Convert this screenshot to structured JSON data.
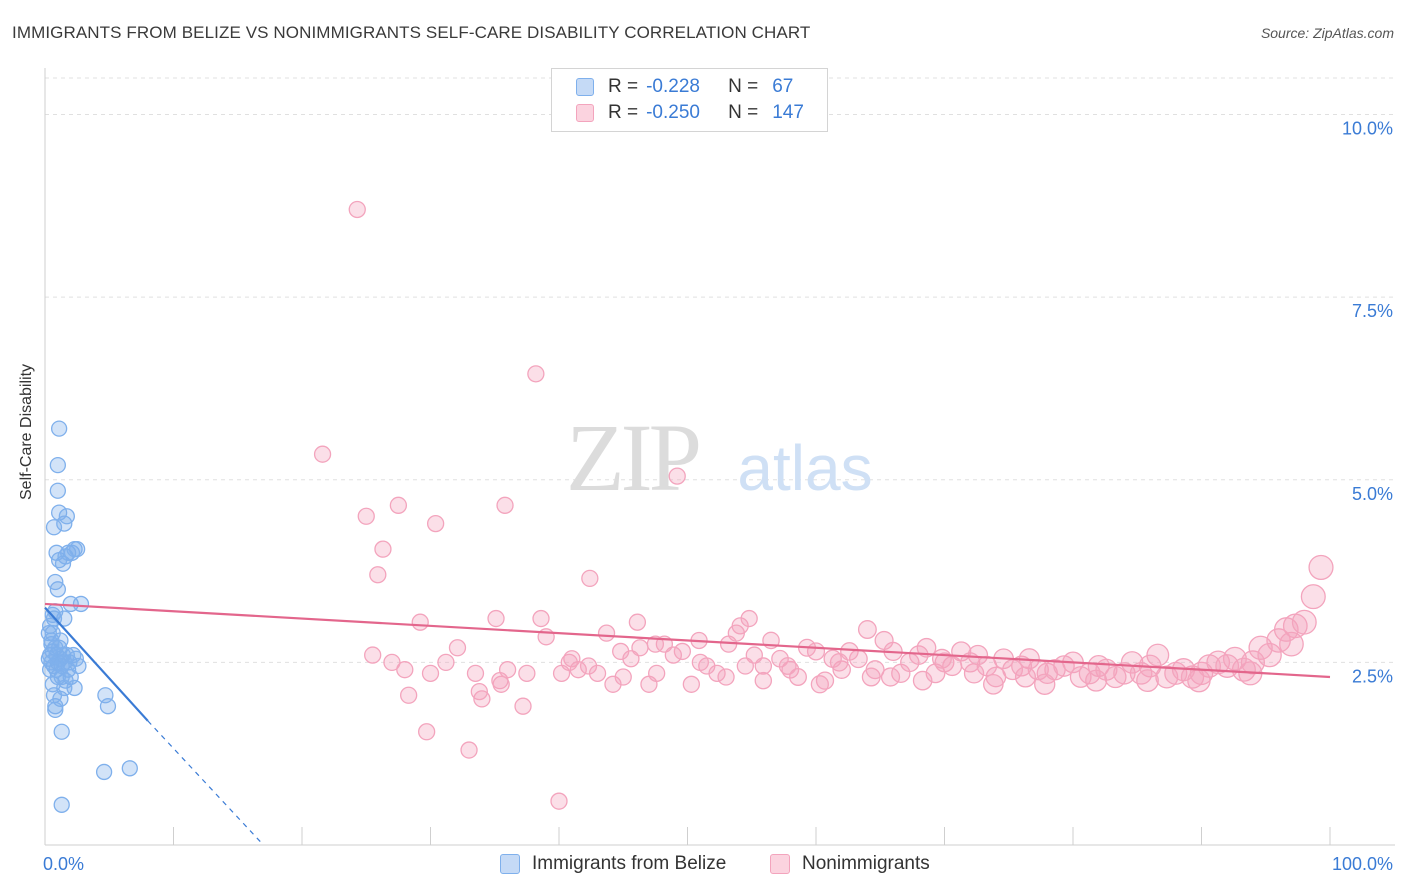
{
  "chart_data": {
    "type": "scatter",
    "title": "IMMIGRANTS FROM BELIZE VS NONIMMIGRANTS SELF-CARE DISABILITY CORRELATION CHART",
    "source": "Source: ZipAtlas.com",
    "ylabel": "Self-Care Disability",
    "xlabel": "",
    "xlim": [
      0,
      100
    ],
    "ylim": [
      0,
      10.5
    ],
    "x_tick_labels": [
      "0.0%",
      "100.0%"
    ],
    "y_ticks": [
      2.5,
      5.0,
      7.5,
      10.0
    ],
    "y_tick_labels": [
      "2.5%",
      "5.0%",
      "7.5%",
      "10.0%"
    ],
    "watermark": {
      "zip": "ZIP",
      "atlas": "atlas"
    },
    "legend": {
      "rows": [
        {
          "r_label": "R =",
          "r_value": "-0.228",
          "n_label": "N =",
          "n_value": "67"
        },
        {
          "r_label": "R =",
          "r_value": "-0.250",
          "n_label": "N =",
          "n_value": "147"
        }
      ]
    },
    "series": [
      {
        "name": "Immigrants from Belize",
        "color": "#7fb0ec",
        "line_color": "#3a7bd5",
        "trend": {
          "x": [
            0,
            8
          ],
          "y": [
            3.25,
            1.7
          ],
          "dashed_to": [
            17,
            0.0
          ]
        },
        "points": [
          [
            0.3,
            2.55
          ],
          [
            0.4,
            2.6
          ],
          [
            0.5,
            2.5
          ],
          [
            0.6,
            2.65
          ],
          [
            0.7,
            2.45
          ],
          [
            0.8,
            2.7
          ],
          [
            0.5,
            2.8
          ],
          [
            0.6,
            2.9
          ],
          [
            0.4,
            3.0
          ],
          [
            0.7,
            3.1
          ],
          [
            0.9,
            2.6
          ],
          [
            1.0,
            2.5
          ],
          [
            1.1,
            2.7
          ],
          [
            1.2,
            2.55
          ],
          [
            1.3,
            2.45
          ],
          [
            0.8,
            3.2
          ],
          [
            1.4,
            2.6
          ],
          [
            1.5,
            2.5
          ],
          [
            0.9,
            2.4
          ],
          [
            1.0,
            2.3
          ],
          [
            0.6,
            2.2
          ],
          [
            0.7,
            2.05
          ],
          [
            0.8,
            1.9
          ],
          [
            1.2,
            2.0
          ],
          [
            1.6,
            2.25
          ],
          [
            1.8,
            2.4
          ],
          [
            1.2,
            2.8
          ],
          [
            1.5,
            3.1
          ],
          [
            1.0,
            3.5
          ],
          [
            0.8,
            3.6
          ],
          [
            1.1,
            3.9
          ],
          [
            0.9,
            4.0
          ],
          [
            1.4,
            3.85
          ],
          [
            1.6,
            3.95
          ],
          [
            1.8,
            4.0
          ],
          [
            2.1,
            4.0
          ],
          [
            2.3,
            4.05
          ],
          [
            2.5,
            4.05
          ],
          [
            0.7,
            4.35
          ],
          [
            1.5,
            4.4
          ],
          [
            1.1,
            4.55
          ],
          [
            1.7,
            4.5
          ],
          [
            1.0,
            4.85
          ],
          [
            1.0,
            5.2
          ],
          [
            1.1,
            5.7
          ],
          [
            2.0,
            3.3
          ],
          [
            2.8,
            3.3
          ],
          [
            2.2,
            2.6
          ],
          [
            2.4,
            2.55
          ],
          [
            2.6,
            2.45
          ],
          [
            2.0,
            2.3
          ],
          [
            2.3,
            2.15
          ],
          [
            1.9,
            2.5
          ],
          [
            1.3,
            2.3
          ],
          [
            1.5,
            2.15
          ],
          [
            4.7,
            2.05
          ],
          [
            4.9,
            1.9
          ],
          [
            0.8,
            1.85
          ],
          [
            1.3,
            1.55
          ],
          [
            4.6,
            1.0
          ],
          [
            6.6,
            1.05
          ],
          [
            1.3,
            0.55
          ],
          [
            0.5,
            2.75
          ],
          [
            0.3,
            2.9
          ],
          [
            0.6,
            3.15
          ],
          [
            0.4,
            2.4
          ],
          [
            1.7,
            2.6
          ]
        ]
      },
      {
        "name": "Nonimmigrants",
        "color": "#f3a4bd",
        "line_color": "#e3668c",
        "trend": {
          "x": [
            0,
            100
          ],
          "y": [
            3.3,
            2.3
          ]
        },
        "points": [
          [
            24.3,
            8.7
          ],
          [
            38.2,
            6.45
          ],
          [
            21.6,
            5.35
          ],
          [
            49.2,
            5.05
          ],
          [
            25.0,
            4.5
          ],
          [
            27.5,
            4.65
          ],
          [
            30.4,
            4.4
          ],
          [
            35.8,
            4.65
          ],
          [
            25.9,
            3.7
          ],
          [
            26.3,
            4.05
          ],
          [
            42.4,
            3.65
          ],
          [
            29.2,
            3.05
          ],
          [
            35.1,
            3.1
          ],
          [
            38.6,
            3.1
          ],
          [
            46.1,
            3.05
          ],
          [
            54.1,
            3.0
          ],
          [
            54.8,
            3.1
          ],
          [
            27.0,
            2.5
          ],
          [
            28.3,
            2.05
          ],
          [
            29.7,
            1.55
          ],
          [
            31.2,
            2.5
          ],
          [
            32.1,
            2.7
          ],
          [
            33.5,
            2.35
          ],
          [
            34.0,
            2.0
          ],
          [
            35.4,
            2.25
          ],
          [
            36.0,
            2.4
          ],
          [
            37.2,
            1.9
          ],
          [
            39.0,
            2.85
          ],
          [
            40.2,
            2.35
          ],
          [
            40.8,
            2.5
          ],
          [
            41.5,
            2.4
          ],
          [
            42.3,
            2.45
          ],
          [
            43.0,
            2.35
          ],
          [
            43.7,
            2.9
          ],
          [
            44.2,
            2.2
          ],
          [
            45.0,
            2.3
          ],
          [
            45.6,
            2.55
          ],
          [
            46.3,
            2.7
          ],
          [
            47.0,
            2.2
          ],
          [
            47.6,
            2.35
          ],
          [
            48.2,
            2.75
          ],
          [
            48.9,
            2.6
          ],
          [
            49.6,
            2.65
          ],
          [
            50.3,
            2.2
          ],
          [
            50.9,
            2.8
          ],
          [
            51.5,
            2.45
          ],
          [
            52.3,
            2.35
          ],
          [
            53.2,
            2.75
          ],
          [
            53.8,
            2.9
          ],
          [
            54.5,
            2.45
          ],
          [
            55.2,
            2.6
          ],
          [
            55.9,
            2.45
          ],
          [
            56.5,
            2.8
          ],
          [
            57.2,
            2.55
          ],
          [
            58.0,
            2.4
          ],
          [
            58.6,
            2.3
          ],
          [
            59.3,
            2.7
          ],
          [
            60.0,
            2.65
          ],
          [
            60.7,
            2.25
          ],
          [
            61.3,
            2.55
          ],
          [
            62.0,
            2.4
          ],
          [
            62.6,
            2.65
          ],
          [
            63.3,
            2.55
          ],
          [
            64.0,
            2.95
          ],
          [
            64.6,
            2.4
          ],
          [
            65.3,
            2.8
          ],
          [
            66.0,
            2.65
          ],
          [
            66.6,
            2.35
          ],
          [
            67.3,
            2.5
          ],
          [
            68.0,
            2.6
          ],
          [
            68.6,
            2.7
          ],
          [
            69.3,
            2.35
          ],
          [
            70.0,
            2.5
          ],
          [
            70.6,
            2.45
          ],
          [
            71.3,
            2.65
          ],
          [
            72.0,
            2.5
          ],
          [
            72.6,
            2.6
          ],
          [
            73.3,
            2.45
          ],
          [
            74.0,
            2.3
          ],
          [
            74.6,
            2.55
          ],
          [
            75.3,
            2.4
          ],
          [
            76.0,
            2.45
          ],
          [
            76.6,
            2.55
          ],
          [
            77.3,
            2.4
          ],
          [
            78.0,
            2.35
          ],
          [
            78.6,
            2.4
          ],
          [
            79.3,
            2.45
          ],
          [
            80.0,
            2.5
          ],
          [
            80.6,
            2.3
          ],
          [
            81.3,
            2.35
          ],
          [
            82.0,
            2.45
          ],
          [
            82.6,
            2.4
          ],
          [
            83.3,
            2.3
          ],
          [
            84.0,
            2.35
          ],
          [
            84.6,
            2.5
          ],
          [
            85.3,
            2.35
          ],
          [
            86.0,
            2.45
          ],
          [
            86.6,
            2.6
          ],
          [
            87.3,
            2.3
          ],
          [
            88.0,
            2.35
          ],
          [
            88.6,
            2.4
          ],
          [
            89.3,
            2.3
          ],
          [
            90.0,
            2.35
          ],
          [
            90.6,
            2.45
          ],
          [
            91.3,
            2.5
          ],
          [
            92.0,
            2.45
          ],
          [
            92.6,
            2.55
          ],
          [
            93.3,
            2.4
          ],
          [
            94.0,
            2.5
          ],
          [
            94.6,
            2.7
          ],
          [
            95.3,
            2.6
          ],
          [
            96.0,
            2.8
          ],
          [
            96.6,
            2.95
          ],
          [
            97.3,
            3.0
          ],
          [
            98.0,
            3.05
          ],
          [
            98.7,
            3.4
          ],
          [
            99.3,
            3.8
          ],
          [
            33.0,
            1.3
          ],
          [
            40.0,
            0.6
          ],
          [
            35.5,
            2.2
          ],
          [
            47.5,
            2.75
          ],
          [
            53.0,
            2.3
          ],
          [
            57.8,
            2.45
          ],
          [
            61.8,
            2.5
          ],
          [
            65.8,
            2.3
          ],
          [
            69.8,
            2.55
          ],
          [
            73.8,
            2.2
          ],
          [
            77.8,
            2.2
          ],
          [
            81.8,
            2.25
          ],
          [
            85.8,
            2.25
          ],
          [
            89.8,
            2.25
          ],
          [
            93.8,
            2.35
          ],
          [
            97.0,
            2.75
          ],
          [
            55.9,
            2.25
          ],
          [
            51.0,
            2.5
          ],
          [
            44.8,
            2.65
          ],
          [
            41.0,
            2.55
          ],
          [
            37.5,
            2.35
          ],
          [
            33.8,
            2.1
          ],
          [
            30.0,
            2.35
          ],
          [
            28.0,
            2.4
          ],
          [
            25.5,
            2.6
          ],
          [
            60.3,
            2.2
          ],
          [
            64.3,
            2.3
          ],
          [
            68.3,
            2.25
          ],
          [
            72.3,
            2.35
          ],
          [
            76.3,
            2.3
          ]
        ]
      }
    ]
  }
}
